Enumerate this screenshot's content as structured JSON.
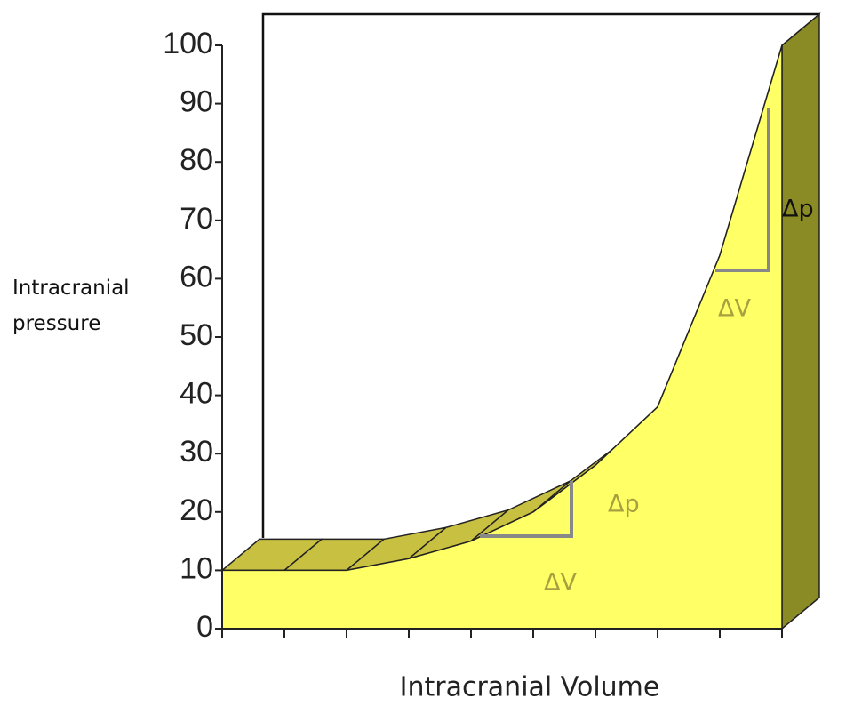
{
  "chart_data": {
    "type": "area",
    "y_label": "Intracranial pressure",
    "x_label": "Intracranial Volume",
    "categories": [
      null,
      null,
      null,
      null,
      null,
      null,
      null,
      null,
      null,
      null
    ],
    "values": [
      10,
      10,
      10,
      12,
      15,
      20,
      28,
      38,
      64,
      100
    ],
    "color": "#ffff66",
    "ylim": [
      0,
      100
    ],
    "yticks": [
      0,
      10,
      20,
      30,
      40,
      50,
      60,
      70,
      80,
      90,
      100
    ],
    "annotations": [
      "Δp",
      "ΔV",
      "Δp",
      "ΔV"
    ]
  }
}
